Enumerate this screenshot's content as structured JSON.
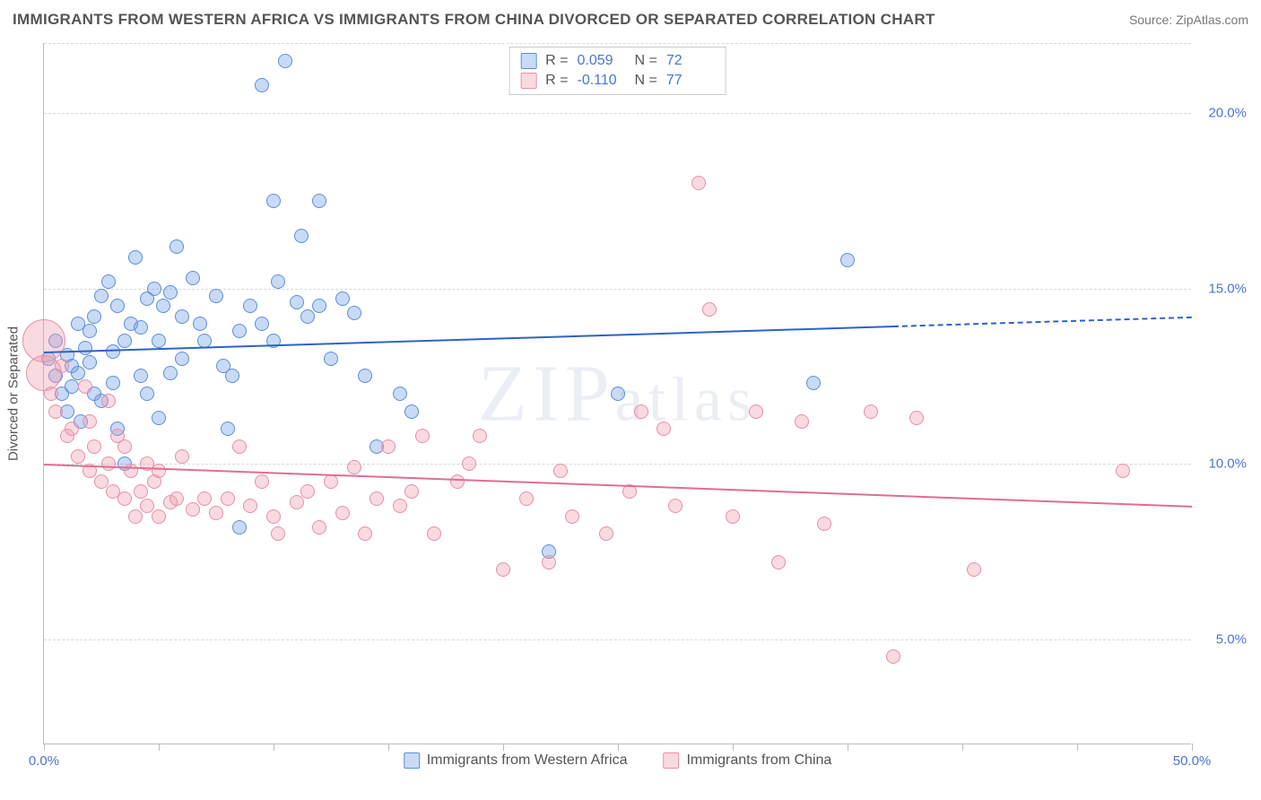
{
  "title": "IMMIGRANTS FROM WESTERN AFRICA VS IMMIGRANTS FROM CHINA DIVORCED OR SEPARATED CORRELATION CHART",
  "source": "Source: ZipAtlas.com",
  "watermark": "ZIPatlas",
  "chart": {
    "type": "scatter",
    "xlim": [
      0,
      50
    ],
    "ylim": [
      2,
      22
    ],
    "x_unit": "%",
    "y_unit": "%",
    "yaxis_label": "Divorced or Separated",
    "background_color": "#ffffff",
    "grid_color": "#d8d8d8",
    "axis_color": "#bdbdbd",
    "tick_label_color": "#4a74d4",
    "tick_fontsize": 15,
    "ygrid_values": [
      5,
      10,
      15,
      20
    ],
    "ytick_labels": [
      "5.0%",
      "10.0%",
      "15.0%",
      "20.0%"
    ],
    "xtick_values": [
      0,
      5,
      10,
      15,
      20,
      25,
      30,
      35,
      40,
      45,
      50
    ],
    "xtick_labels": {
      "0": "0.0%",
      "50": "50.0%"
    },
    "marker_radius": 8,
    "marker_border_width": 1.2,
    "series": [
      {
        "name": "Immigrants from Western Africa",
        "fill": "rgba(100,150,230,0.35)",
        "stroke": "#5b8fd6",
        "trend_color": "#2e63c4",
        "R": "0.059",
        "N": "72",
        "trend": {
          "x0": 0,
          "y0": 13.2,
          "x1": 50,
          "y1": 14.2,
          "solid_until_x": 37
        },
        "points": [
          [
            0.2,
            13.0
          ],
          [
            0.5,
            12.5
          ],
          [
            0.5,
            13.5
          ],
          [
            0.8,
            12.0
          ],
          [
            1.0,
            13.1
          ],
          [
            1.0,
            11.5
          ],
          [
            1.2,
            12.8
          ],
          [
            1.2,
            12.2
          ],
          [
            1.5,
            14.0
          ],
          [
            1.5,
            12.6
          ],
          [
            1.6,
            11.2
          ],
          [
            1.8,
            13.3
          ],
          [
            2.0,
            12.9
          ],
          [
            2.0,
            13.8
          ],
          [
            2.2,
            12.0
          ],
          [
            2.2,
            14.2
          ],
          [
            2.5,
            14.8
          ],
          [
            2.5,
            11.8
          ],
          [
            2.8,
            15.2
          ],
          [
            3.0,
            13.2
          ],
          [
            3.0,
            12.3
          ],
          [
            3.2,
            11.0
          ],
          [
            3.2,
            14.5
          ],
          [
            3.5,
            13.5
          ],
          [
            3.5,
            10.0
          ],
          [
            3.8,
            14.0
          ],
          [
            4.0,
            15.9
          ],
          [
            4.2,
            12.5
          ],
          [
            4.2,
            13.9
          ],
          [
            4.5,
            14.7
          ],
          [
            4.5,
            12.0
          ],
          [
            4.8,
            15.0
          ],
          [
            5.0,
            13.5
          ],
          [
            5.0,
            11.3
          ],
          [
            5.2,
            14.5
          ],
          [
            5.5,
            14.9
          ],
          [
            5.5,
            12.6
          ],
          [
            5.8,
            16.2
          ],
          [
            6.0,
            13.0
          ],
          [
            6.0,
            14.2
          ],
          [
            6.5,
            15.3
          ],
          [
            6.8,
            14.0
          ],
          [
            7.0,
            13.5
          ],
          [
            7.5,
            14.8
          ],
          [
            7.8,
            12.8
          ],
          [
            8.0,
            11.0
          ],
          [
            8.2,
            12.5
          ],
          [
            8.5,
            13.8
          ],
          [
            8.5,
            8.2
          ],
          [
            9.0,
            14.5
          ],
          [
            9.5,
            14.0
          ],
          [
            9.5,
            20.8
          ],
          [
            10.0,
            13.5
          ],
          [
            10.0,
            17.5
          ],
          [
            10.2,
            15.2
          ],
          [
            10.5,
            21.5
          ],
          [
            11.0,
            14.6
          ],
          [
            11.2,
            16.5
          ],
          [
            11.5,
            14.2
          ],
          [
            12.0,
            14.5
          ],
          [
            12.0,
            17.5
          ],
          [
            12.5,
            13.0
          ],
          [
            13.0,
            14.7
          ],
          [
            13.5,
            14.3
          ],
          [
            14.0,
            12.5
          ],
          [
            14.5,
            10.5
          ],
          [
            15.5,
            12.0
          ],
          [
            16.0,
            11.5
          ],
          [
            22.0,
            7.5
          ],
          [
            25.0,
            12.0
          ],
          [
            33.5,
            12.3
          ],
          [
            35.0,
            15.8
          ]
        ]
      },
      {
        "name": "Immigrants from China",
        "fill": "rgba(240,150,170,0.35)",
        "stroke": "#e490a6",
        "trend_color": "#e06d94",
        "R": "-0.110",
        "N": "77",
        "trend": {
          "x0": 0,
          "y0": 10.0,
          "x1": 50,
          "y1": 8.8,
          "solid_until_x": 50
        },
        "points": [
          [
            0.0,
            13.5,
            24
          ],
          [
            0.0,
            12.6,
            20
          ],
          [
            0.3,
            12.0
          ],
          [
            0.5,
            11.5
          ],
          [
            0.8,
            12.8
          ],
          [
            1.0,
            10.8
          ],
          [
            1.2,
            11.0
          ],
          [
            1.5,
            10.2
          ],
          [
            1.8,
            12.2
          ],
          [
            2.0,
            9.8
          ],
          [
            2.0,
            11.2
          ],
          [
            2.2,
            10.5
          ],
          [
            2.5,
            9.5
          ],
          [
            2.8,
            10.0
          ],
          [
            2.8,
            11.8
          ],
          [
            3.0,
            9.2
          ],
          [
            3.2,
            10.8
          ],
          [
            3.5,
            9.0
          ],
          [
            3.5,
            10.5
          ],
          [
            3.8,
            9.8
          ],
          [
            4.0,
            8.5
          ],
          [
            4.2,
            9.2
          ],
          [
            4.5,
            10.0
          ],
          [
            4.5,
            8.8
          ],
          [
            4.8,
            9.5
          ],
          [
            5.0,
            8.5
          ],
          [
            5.0,
            9.8
          ],
          [
            5.5,
            8.9
          ],
          [
            5.8,
            9.0
          ],
          [
            6.0,
            10.2
          ],
          [
            6.5,
            8.7
          ],
          [
            7.0,
            9.0
          ],
          [
            7.5,
            8.6
          ],
          [
            8.0,
            9.0
          ],
          [
            8.5,
            10.5
          ],
          [
            9.0,
            8.8
          ],
          [
            9.5,
            9.5
          ],
          [
            10.0,
            8.5
          ],
          [
            10.2,
            8.0
          ],
          [
            11.0,
            8.9
          ],
          [
            11.5,
            9.2
          ],
          [
            12.0,
            8.2
          ],
          [
            12.5,
            9.5
          ],
          [
            13.0,
            8.6
          ],
          [
            13.5,
            9.9
          ],
          [
            14.0,
            8.0
          ],
          [
            14.5,
            9.0
          ],
          [
            15.0,
            10.5
          ],
          [
            15.5,
            8.8
          ],
          [
            16.0,
            9.2
          ],
          [
            16.5,
            10.8
          ],
          [
            17.0,
            8.0
          ],
          [
            18.0,
            9.5
          ],
          [
            18.5,
            10.0
          ],
          [
            19.0,
            10.8
          ],
          [
            20.0,
            7.0
          ],
          [
            21.0,
            9.0
          ],
          [
            22.0,
            7.2
          ],
          [
            22.5,
            9.8
          ],
          [
            23.0,
            8.5
          ],
          [
            24.5,
            8.0
          ],
          [
            25.5,
            9.2
          ],
          [
            26.0,
            11.5
          ],
          [
            27.0,
            11.0
          ],
          [
            27.5,
            8.8
          ],
          [
            28.5,
            18.0
          ],
          [
            29.0,
            14.4
          ],
          [
            30.0,
            8.5
          ],
          [
            31.0,
            11.5
          ],
          [
            32.0,
            7.2
          ],
          [
            33.0,
            11.2
          ],
          [
            34.0,
            8.3
          ],
          [
            36.0,
            11.5
          ],
          [
            37.0,
            4.5
          ],
          [
            38.0,
            11.3
          ],
          [
            40.5,
            7.0
          ],
          [
            47.0,
            9.8
          ]
        ]
      }
    ]
  },
  "legend": {
    "series_a": "Immigrants from Western Africa",
    "series_b": "Immigrants from China"
  },
  "stats_labels": {
    "R": "R =",
    "N": "N ="
  }
}
